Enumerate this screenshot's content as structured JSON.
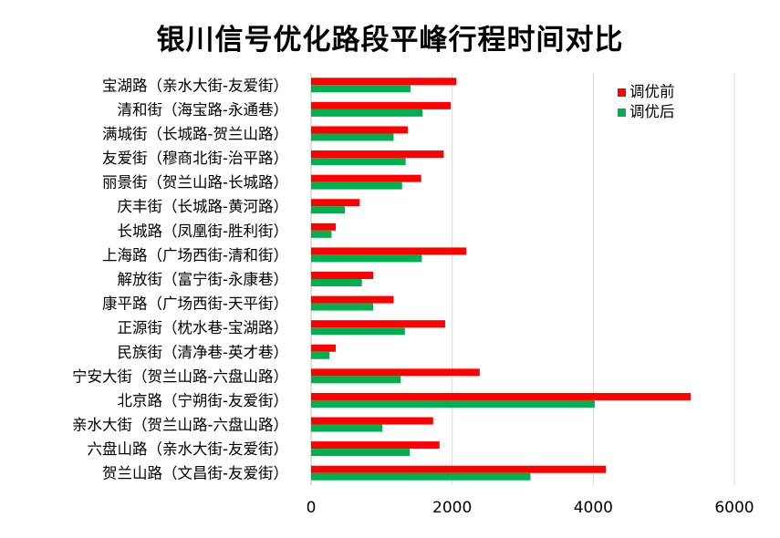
{
  "chart_data": {
    "type": "bar",
    "orientation": "horizontal",
    "title": "银川信号优化路段平峰行程时间对比",
    "xlabel": "",
    "ylabel": "",
    "xlim": [
      0,
      6000
    ],
    "xticks": [
      "0",
      "2000",
      "4000",
      "6000"
    ],
    "grid": "vertical",
    "legend_position": "top-right",
    "categories": [
      "宝湖路（亲水大街-友爱街）",
      "清和街（海宝路-永通巷）",
      "满城街（长城路-贺兰山路）",
      "友爱街（穆商北街-治平路）",
      "丽景街（贺兰山路-长城路）",
      "庆丰街（长城路-黄河路）",
      "长城路（凤凰街-胜利街）",
      "上海路（广场西街-清和街）",
      "解放街（富宁街-永康巷）",
      "康平路（广场西街-天平街）",
      "正源街（枕水巷-宝湖路）",
      "民族街（清净巷-英才巷）",
      "宁安大街（贺兰山路-六盘山路）",
      "北京路（宁朔街-友爱街）",
      "亲水大街（贺兰山路-六盘山路）",
      "六盘山路（亲水大街-友爱街）",
      "贺兰山路（文昌街-友爱街）"
    ],
    "series": [
      {
        "name": "调优前",
        "color": "#ff0000",
        "values": [
          2060,
          1980,
          1370,
          1880,
          1560,
          690,
          350,
          2200,
          880,
          1170,
          1900,
          350,
          2390,
          5380,
          1730,
          1820,
          4180
        ]
      },
      {
        "name": "调优后",
        "color": "#00b050",
        "values": [
          1410,
          1580,
          1170,
          1340,
          1290,
          480,
          290,
          1570,
          720,
          880,
          1330,
          260,
          1270,
          4020,
          1010,
          1400,
          3110
        ]
      }
    ]
  }
}
